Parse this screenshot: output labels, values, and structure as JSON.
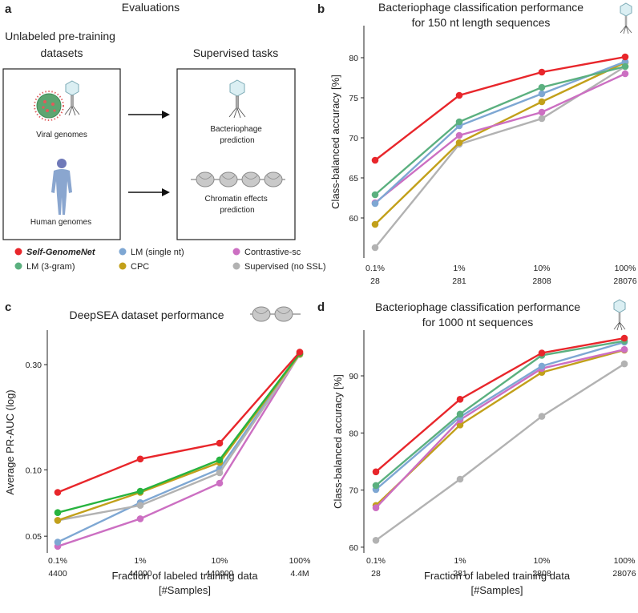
{
  "colors": {
    "self": "#e8262b",
    "lm3": "#5bb07f",
    "lmsingle": "#7ea7d3",
    "cpc": "#c2a01a",
    "contrastive": "#cc6fc2",
    "supervised": "#b2b2b2",
    "green_c": "#27b33f"
  },
  "panel_a": {
    "label": "a",
    "title": "Evaluations",
    "left_heading": "Unlabeled pre-training datasets",
    "right_heading": "Supervised tasks",
    "viral_label": "Viral genomes",
    "human_label": "Human genomes",
    "bacteriophage_label": "Bacteriophage prediction",
    "chromatin_label": "Chromatin effects prediction",
    "icons": [
      "virus-icon",
      "bacteriophage-icon",
      "human-figure-icon",
      "nucleosome-icon"
    ]
  },
  "legend": [
    {
      "name": "Self-GenomeNet",
      "key": "self",
      "bold": true
    },
    {
      "name": "LM (3-gram)",
      "key": "lm3"
    },
    {
      "name": "LM (single nt)",
      "key": "lmsingle"
    },
    {
      "name": "CPC",
      "key": "cpc"
    },
    {
      "name": "Contrastive-sc",
      "key": "contrastive"
    },
    {
      "name": "Supervised (no SSL)",
      "key": "supervised"
    }
  ],
  "chart_data": [
    {
      "panel": "b",
      "type": "line",
      "title": "Bacteriophage classification performance for 150 nt length sequences",
      "ylabel": "Class-balanced accuracy [%]",
      "xlabel": "",
      "ylim": [
        55,
        84
      ],
      "yticks": [
        60,
        65,
        70,
        75,
        80
      ],
      "categories": [
        "0.1%",
        "1%",
        "10%",
        "100%"
      ],
      "categories2": [
        "28",
        "281",
        "2808",
        "28076"
      ],
      "series": [
        {
          "name": "Supervised (no SSL)",
          "key": "supervised",
          "values": [
            56.3,
            69.2,
            72.4,
            78.9
          ]
        },
        {
          "name": "CPC",
          "key": "cpc",
          "values": [
            59.2,
            69.4,
            74.5,
            79.4
          ]
        },
        {
          "name": "Contrastive-sc",
          "key": "contrastive",
          "values": [
            61.9,
            70.3,
            73.2,
            78.0
          ]
        },
        {
          "name": "LM (single nt)",
          "key": "lmsingle",
          "values": [
            61.8,
            71.5,
            75.5,
            79.5
          ]
        },
        {
          "name": "LM (3-gram)",
          "key": "lm3",
          "values": [
            62.9,
            72.0,
            76.3,
            78.9
          ]
        },
        {
          "name": "Self-GenomeNet",
          "key": "self",
          "values": [
            67.2,
            75.3,
            78.2,
            80.1
          ]
        }
      ]
    },
    {
      "panel": "c",
      "type": "line",
      "title": "DeepSEA dataset performance",
      "ylabel": "Average PR-AUC (log)",
      "xlabel": "Fraction of labeled training data [#Samples]",
      "yscale": "log",
      "ylim": [
        0.042,
        0.43
      ],
      "yticks": [
        0.05,
        0.1,
        0.3
      ],
      "ytick_labels": [
        "0.05",
        "0.10",
        "0.30"
      ],
      "categories": [
        "0.1%",
        "1%",
        "10%",
        "100%"
      ],
      "categories2": [
        "4400",
        "44000",
        "440000",
        "4.4M"
      ],
      "series": [
        {
          "name": "Contrastive-sc",
          "key": "contrastive",
          "values": [
            0.045,
            0.06,
            0.087,
            0.335
          ]
        },
        {
          "name": "LM (single nt)",
          "key": "lmsingle",
          "values": [
            0.047,
            0.071,
            0.101,
            0.335
          ]
        },
        {
          "name": "Supervised (no SSL)",
          "key": "supervised",
          "values": [
            0.059,
            0.069,
            0.097,
            0.333
          ]
        },
        {
          "name": "CPC",
          "key": "cpc",
          "values": [
            0.059,
            0.079,
            0.108,
            0.335
          ]
        },
        {
          "name": "LM (3-gram)",
          "key": "green_c",
          "values": [
            0.064,
            0.08,
            0.111,
            0.338
          ]
        },
        {
          "name": "Self-GenomeNet",
          "key": "self",
          "values": [
            0.079,
            0.112,
            0.132,
            0.342
          ]
        }
      ]
    },
    {
      "panel": "d",
      "type": "line",
      "title": "Bacteriophage classification performance for 1000 nt sequences",
      "ylabel": "Class-balanced accuracy [%]",
      "xlabel": "Fraction of labeled training data [#Samples]",
      "ylim": [
        59,
        98
      ],
      "yticks": [
        60,
        70,
        80,
        90
      ],
      "categories": [
        "0.1%",
        "1%",
        "10%",
        "100%"
      ],
      "categories2": [
        "28",
        "281",
        "2808",
        "28076"
      ],
      "series": [
        {
          "name": "Supervised (no SSL)",
          "key": "supervised",
          "values": [
            61.2,
            71.9,
            82.9,
            92.1
          ]
        },
        {
          "name": "CPC",
          "key": "cpc",
          "values": [
            67.3,
            81.4,
            90.6,
            94.5
          ]
        },
        {
          "name": "Contrastive-sc",
          "key": "contrastive",
          "values": [
            66.9,
            82.3,
            91.3,
            94.6
          ]
        },
        {
          "name": "LM (single nt)",
          "key": "lmsingle",
          "values": [
            70.1,
            82.8,
            91.7,
            95.9
          ]
        },
        {
          "name": "LM (3-gram)",
          "key": "lm3",
          "values": [
            70.8,
            83.3,
            93.6,
            96.1
          ]
        },
        {
          "name": "Self-GenomeNet",
          "key": "self",
          "values": [
            73.2,
            85.9,
            94.0,
            96.6
          ]
        }
      ]
    }
  ]
}
